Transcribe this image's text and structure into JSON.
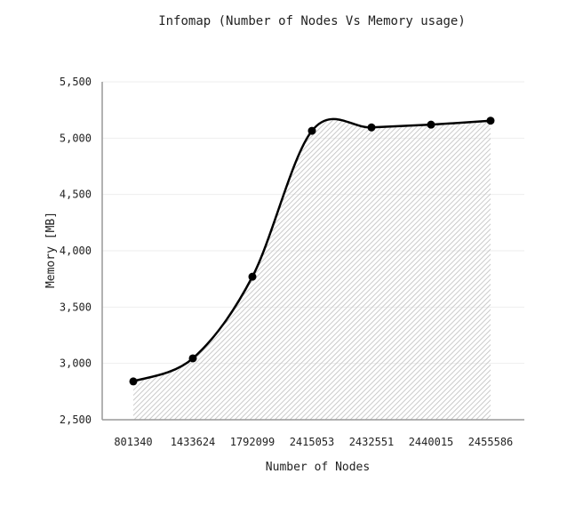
{
  "chart_data": {
    "type": "area",
    "title": "Infomap (Number of Nodes Vs Memory usage)",
    "xlabel": "Number of Nodes",
    "ylabel": "Memory [MB]",
    "categories": [
      "801340",
      "1433624",
      "1792099",
      "2415053",
      "2432551",
      "2440015",
      "2455586"
    ],
    "values": [
      2840,
      3045,
      3770,
      5065,
      5095,
      5120,
      5155
    ],
    "ylim": [
      2500,
      5500
    ],
    "yticks": [
      2500,
      3000,
      3500,
      4000,
      4500,
      5000,
      5500
    ],
    "ytick_labels": [
      "2,500",
      "3,000",
      "3,500",
      "4,000",
      "4,500",
      "5,000",
      "5,500"
    ],
    "grid": true,
    "colors": {
      "line": "#000000",
      "fill_hatch": "#bdbdbd",
      "grid": "#eeeeee"
    }
  }
}
